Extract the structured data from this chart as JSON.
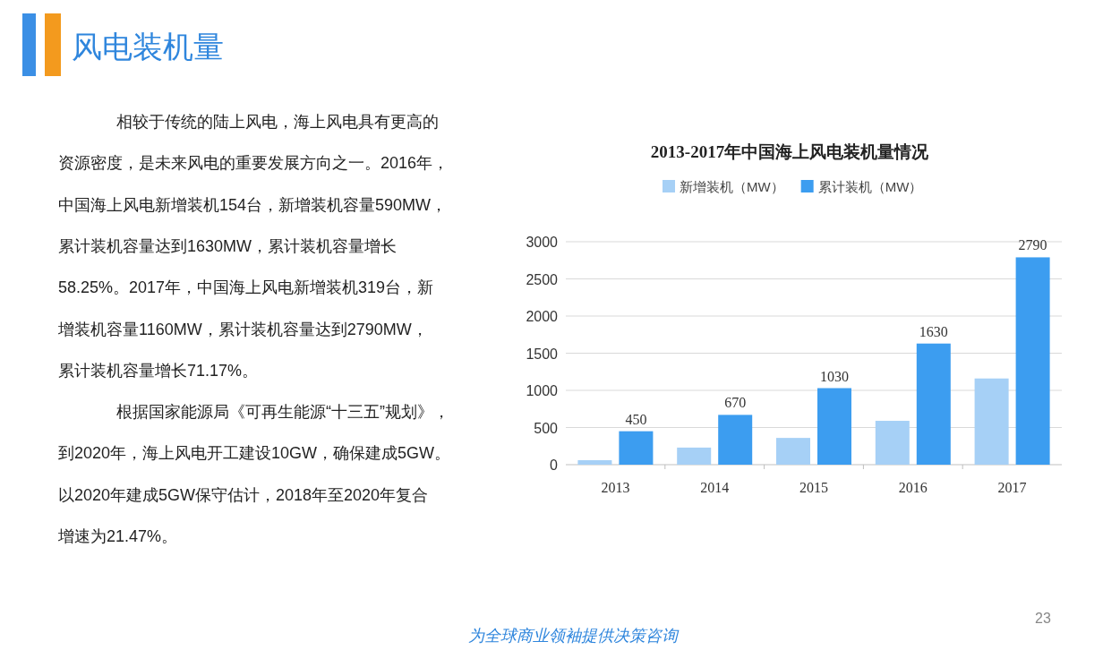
{
  "chart_data": {
    "type": "bar",
    "title": "2013-2017年中国海上风电装机量情况",
    "categories": [
      "2013",
      "2014",
      "2015",
      "2016",
      "2017"
    ],
    "series": [
      {
        "name": "新增装机（MW）",
        "color": "#a6d0f6",
        "values": [
          60,
          230,
          360,
          590,
          1160
        ]
      },
      {
        "name": "累计装机（MW）",
        "color": "#3c9df0",
        "values": [
          450,
          670,
          1030,
          1630,
          2790
        ],
        "value_labels": [
          "450",
          "670",
          "1030",
          "1630",
          "2790"
        ]
      }
    ],
    "ylim": [
      0,
      3000
    ],
    "yticks": [
      0,
      500,
      1000,
      1500,
      2000,
      2500,
      3000
    ],
    "grid": "y",
    "legend": "top",
    "annotations": [
      "风电装机量",
      "相较于传统的陆上风电，海上风电具有更高的",
      "资源密度，是未来风电的重要发展方向之一。2016年，",
      "中国海上风电新增装机154台，新增装机容量590MW，",
      "累计装机容量达到1630MW，累计装机容量增长",
      "58.25%。2017年，中国海上风电新增装机319台，新",
      "增装机容量1160MW，累计装机容量达到2790MW，",
      "累计装机容量增长71.17%。",
      "根据国家能源局《可再生能源“十三五”规划》，",
      "到2020年，海上风电开工建设10GW，确保建成5GW。",
      "以2020年建成5GW保守估计，2018年至2020年复合",
      "增速为21.47%。",
      "为全球商业领袖提供决策咨询",
      "23"
    ]
  }
}
